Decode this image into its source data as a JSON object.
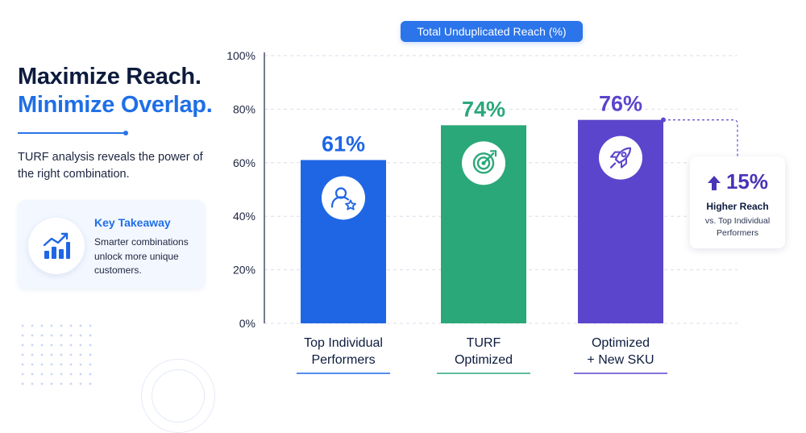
{
  "headline": {
    "line1": "Maximize Reach.",
    "line2": "Minimize Overlap."
  },
  "intro": "TURF analysis reveals the power of the right combination.",
  "takeaway": {
    "title": "Key Takeaway",
    "body": "Smarter combinations unlock more unique customers.",
    "icon": "rising-bar-chart-icon"
  },
  "callout": {
    "value": "15%",
    "label": "Higher Reach",
    "sub": "vs. Top Individual Performers",
    "icon": "arrow-up-icon"
  },
  "colors": {
    "blue": "#1f6fe6",
    "green": "#2aa87a",
    "purple": "#5b45cc",
    "navy": "#0d1b3e"
  },
  "chart_data": {
    "type": "bar",
    "title": "Total Unduplicated Reach (%)",
    "categories": [
      "Top Individual Performers",
      "TURF Optimized",
      "Optimized + New SKU"
    ],
    "category_lines": [
      [
        "Top Individual",
        "Performers"
      ],
      [
        "TURF",
        "Optimized"
      ],
      [
        "Optimized",
        "+ New SKU"
      ]
    ],
    "values": [
      61,
      74,
      76
    ],
    "value_labels": [
      "61%",
      "74%",
      "76%"
    ],
    "bar_colors": [
      "#1f66e5",
      "#2aa87a",
      "#5b45cc"
    ],
    "bar_icons": [
      "user-star-icon",
      "target-icon",
      "rocket-icon"
    ],
    "ylim": [
      0,
      100
    ],
    "yticks": [
      0,
      20,
      40,
      60,
      80,
      100
    ],
    "ytick_labels": [
      "0%",
      "20%",
      "40%",
      "60%",
      "80%",
      "100%"
    ],
    "grid": true
  }
}
